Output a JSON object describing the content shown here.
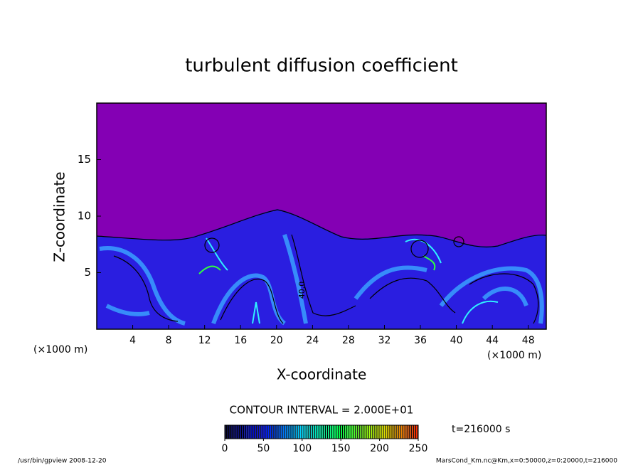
{
  "chart_data": {
    "type": "contour",
    "title": "turbulent diffusion coefficient",
    "xlabel": "X-coordinate",
    "ylabel": "Z-coordinate",
    "x_unit_left": "(×1000 m)",
    "x_unit_right": "(×1000 m)",
    "xlim": [
      0,
      50
    ],
    "xticks": [
      4,
      8,
      12,
      16,
      20,
      24,
      28,
      32,
      36,
      40,
      44,
      48
    ],
    "ylim": [
      0,
      20
    ],
    "yticks": [
      5,
      10,
      15
    ],
    "contour_label": "40.0",
    "contour_interval": "CONTOUR INTERVAL = 2.000E+01",
    "time_label": "t=216000 s",
    "colorbar": {
      "lim": [
        0,
        250
      ],
      "ticks": [
        0,
        50,
        100,
        150,
        200,
        250
      ],
      "colors": [
        "#000030",
        "#0010ff",
        "#00e0ff",
        "#00ff40",
        "#e0ff00",
        "#ff2000"
      ]
    },
    "background_color": "#8400b4",
    "footer_left": "/usr/bin/gpview  2008-12-20",
    "footer_right": "MarsCond_Km.nc@Km,x=0:50000,z=0:20000,t=216000"
  }
}
